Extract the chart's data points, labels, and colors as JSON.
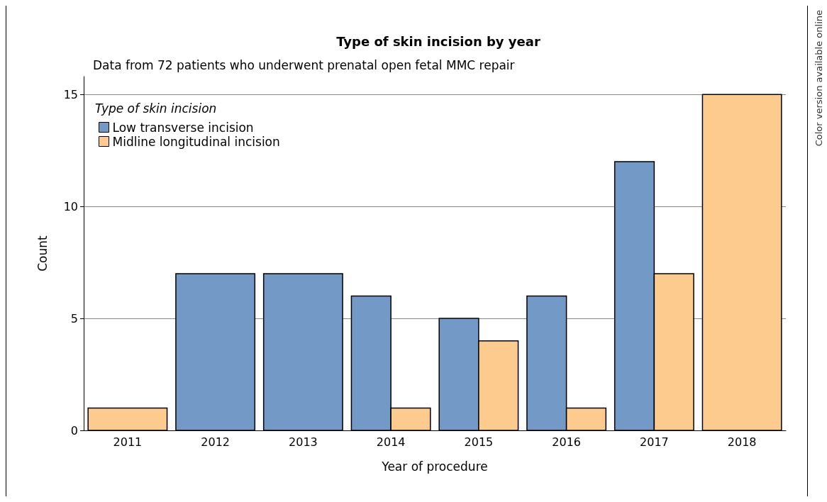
{
  "chart_data": {
    "type": "bar",
    "title": "Type of skin incision by year",
    "subtitle": "Data from 72 patients who underwent prenatal open fetal MMC repair",
    "xlabel": "Year of procedure",
    "ylabel": "Count",
    "legend_title": "Type of skin incision",
    "categories": [
      "2011",
      "2012",
      "2013",
      "2014",
      "2015",
      "2016",
      "2017",
      "2018"
    ],
    "series": [
      {
        "name": "Low transverse incision",
        "color": "#7399c6",
        "values": [
          null,
          7,
          7,
          6,
          5,
          6,
          12,
          null
        ]
      },
      {
        "name": "Midline longitudinal incision",
        "color": "#fecb8f",
        "values": [
          1,
          null,
          null,
          1,
          4,
          1,
          7,
          15
        ]
      }
    ],
    "ylim": [
      0,
      15.8
    ],
    "yticks": [
      0,
      5,
      10,
      15
    ],
    "grid": "y",
    "legend": "top left",
    "annotations": [
      "Color version available online"
    ]
  }
}
